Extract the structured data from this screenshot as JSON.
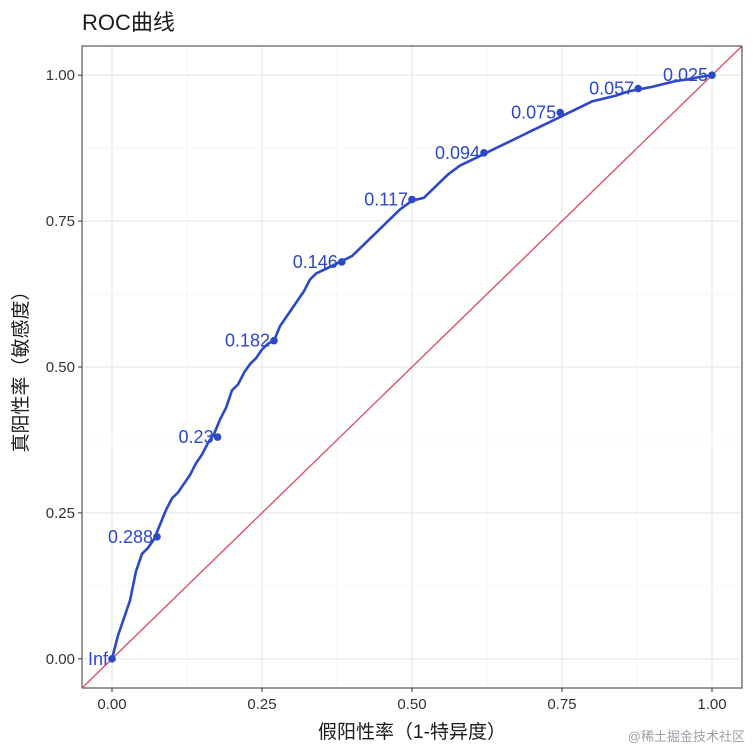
{
  "chart_data": {
    "type": "line",
    "title": "ROC曲线",
    "xlabel": "假阳性率（1-特异度）",
    "ylabel": "真阳性率（敏感度）",
    "xlim": [
      -0.05,
      1.05
    ],
    "ylim": [
      -0.05,
      1.05
    ],
    "grid": true,
    "x_ticks": [
      "0.00",
      "0.25",
      "0.50",
      "0.75",
      "1.00"
    ],
    "y_ticks": [
      "0.00",
      "0.25",
      "0.50",
      "0.75",
      "1.00"
    ],
    "series": [
      {
        "color": "#2b48c8",
        "x": [
          0.0,
          0.01,
          0.02,
          0.03,
          0.04,
          0.05,
          0.06,
          0.07,
          0.08,
          0.09,
          0.1,
          0.11,
          0.12,
          0.13,
          0.14,
          0.15,
          0.16,
          0.17,
          0.18,
          0.19,
          0.2,
          0.21,
          0.22,
          0.23,
          0.24,
          0.25,
          0.26,
          0.27,
          0.28,
          0.29,
          0.3,
          0.31,
          0.32,
          0.33,
          0.34,
          0.35,
          0.36,
          0.37,
          0.38,
          0.4,
          0.42,
          0.44,
          0.46,
          0.48,
          0.5,
          0.52,
          0.54,
          0.56,
          0.58,
          0.6,
          0.62,
          0.64,
          0.66,
          0.68,
          0.7,
          0.72,
          0.74,
          0.76,
          0.78,
          0.8,
          0.82,
          0.84,
          0.86,
          0.88,
          0.9,
          0.92,
          0.94,
          0.96,
          0.98,
          1.0
        ],
        "y": [
          0.0,
          0.04,
          0.07,
          0.1,
          0.15,
          0.18,
          0.19,
          0.205,
          0.23,
          0.255,
          0.275,
          0.285,
          0.3,
          0.315,
          0.335,
          0.35,
          0.37,
          0.385,
          0.41,
          0.43,
          0.46,
          0.47,
          0.49,
          0.505,
          0.515,
          0.53,
          0.54,
          0.545,
          0.57,
          0.585,
          0.6,
          0.615,
          0.63,
          0.65,
          0.66,
          0.665,
          0.67,
          0.675,
          0.68,
          0.69,
          0.71,
          0.73,
          0.75,
          0.77,
          0.785,
          0.79,
          0.81,
          0.83,
          0.845,
          0.855,
          0.865,
          0.875,
          0.885,
          0.895,
          0.905,
          0.915,
          0.925,
          0.935,
          0.945,
          0.955,
          0.96,
          0.965,
          0.972,
          0.976,
          0.98,
          0.985,
          0.99,
          0.993,
          0.997,
          1.0
        ]
      },
      {
        "color": "#d9536b",
        "x": [
          -0.05,
          1.05
        ],
        "y": [
          -0.05,
          1.05
        ]
      }
    ],
    "points": [
      {
        "label": "Inf",
        "x": 0.0,
        "y": 0.0
      },
      {
        "label": "0.288",
        "x": 0.075,
        "y": 0.209
      },
      {
        "label": "0.23",
        "x": 0.176,
        "y": 0.38
      },
      {
        "label": "0.182",
        "x": 0.27,
        "y": 0.545
      },
      {
        "label": "0.146",
        "x": 0.383,
        "y": 0.68
      },
      {
        "label": "0.117",
        "x": 0.5,
        "y": 0.787
      },
      {
        "label": "0.094",
        "x": 0.62,
        "y": 0.867
      },
      {
        "label": "0.075",
        "x": 0.747,
        "y": 0.936
      },
      {
        "label": "0.057",
        "x": 0.877,
        "y": 0.977
      },
      {
        "label": "0.025",
        "x": 1.0,
        "y": 1.0
      }
    ]
  },
  "watermark": "@稀土掘金技术社区"
}
